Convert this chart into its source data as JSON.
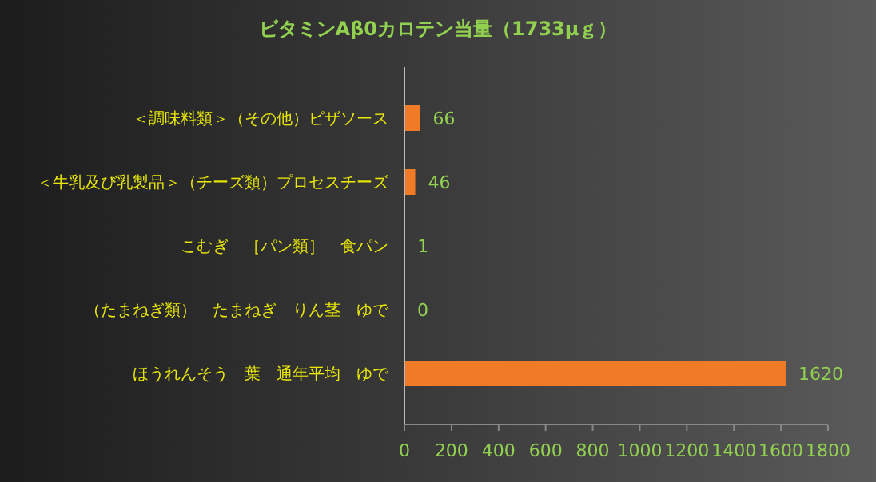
{
  "chart_data": {
    "type": "bar",
    "orientation": "horizontal",
    "title": "ビタミンAβ0カロテン当量（1733μｇ）",
    "categories": [
      "＜調味料類＞（その他）ピザソース",
      "＜牛乳及び乳製品＞（チーズ類）プロセスチーズ",
      "こむぎ　［パン類］　食パン",
      "（たまねぎ類）　たまねぎ　りん茎　ゆで",
      "ほうれんそう　葉　通年平均　ゆで"
    ],
    "values": [
      66,
      46,
      1,
      0,
      1620
    ],
    "color": "#f07a26",
    "data_labels": true,
    "xlim": [
      0,
      1800
    ],
    "xticks": [
      0,
      200,
      400,
      600,
      800,
      1000,
      1200,
      1400,
      1600,
      1800
    ],
    "grid": false
  }
}
